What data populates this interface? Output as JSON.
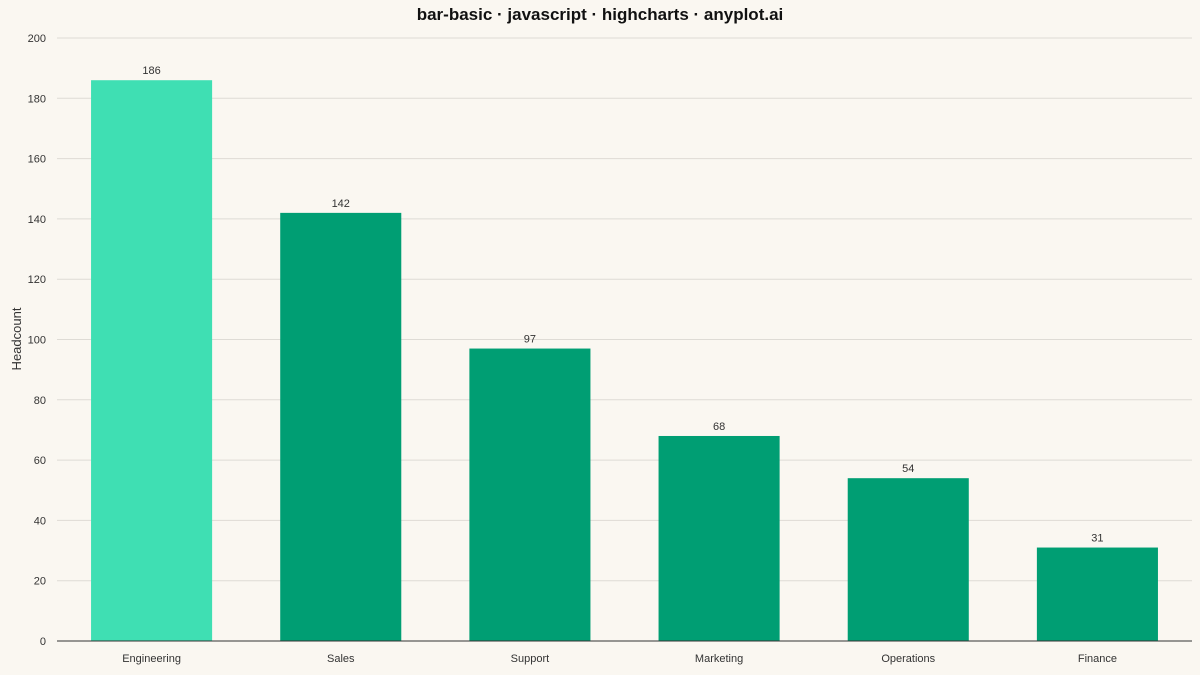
{
  "colors": {
    "background": "#FAF7F1",
    "bar": "#009E73",
    "bar_highlight": "#3FDFB3",
    "grid": "#DEDBD5",
    "axis_line": "#333333",
    "text": "#333333",
    "title": "#111111"
  },
  "chart_data": {
    "type": "bar",
    "title": "bar-basic · javascript · highcharts · anyplot.ai",
    "xlabel": "",
    "ylabel": "Headcount",
    "categories": [
      "Engineering",
      "Sales",
      "Support",
      "Marketing",
      "Operations",
      "Finance"
    ],
    "values": [
      186,
      142,
      97,
      68,
      54,
      31
    ],
    "highlight_index": 0,
    "data_labels": true,
    "ylim": [
      0,
      200
    ],
    "yticks": [
      0,
      20,
      40,
      60,
      80,
      100,
      120,
      140,
      160,
      180,
      200
    ],
    "grid": true,
    "legend": "none"
  }
}
